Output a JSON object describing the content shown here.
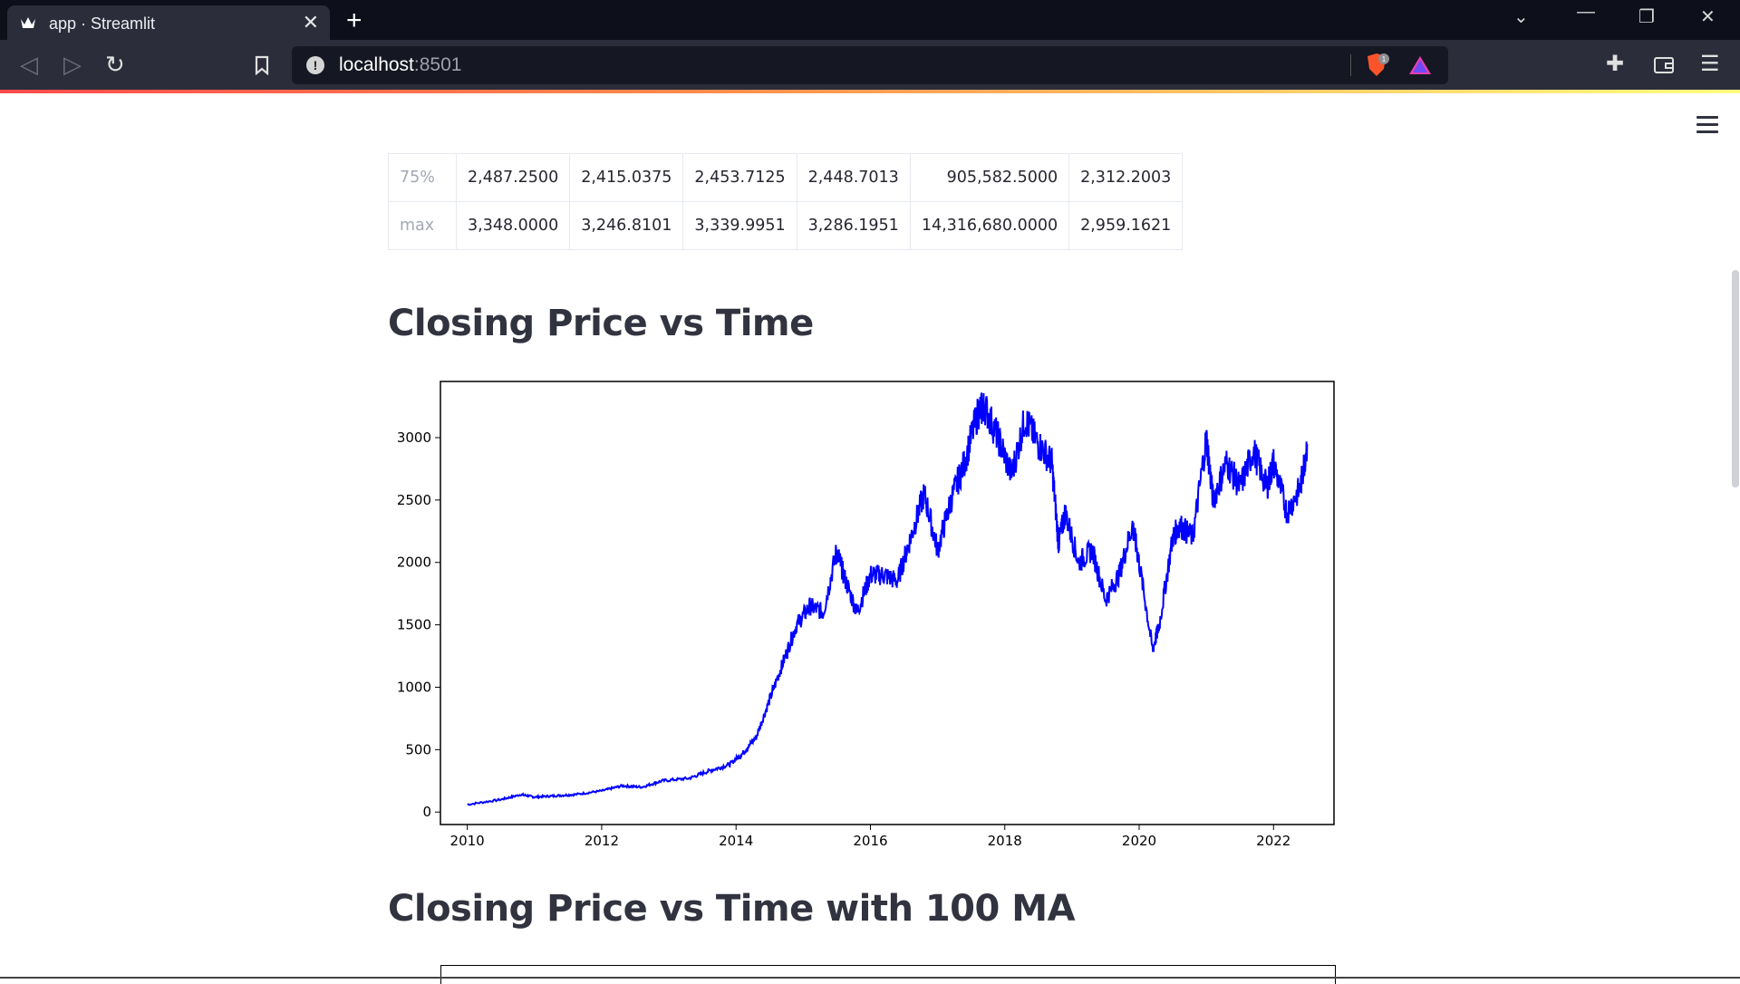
{
  "browser": {
    "tab_title": "app · Streamlit",
    "url_host": "localhost",
    "url_port": ":8501",
    "brave_badge": "1"
  },
  "stats_table": {
    "rows": [
      {
        "index": "75%",
        "values": [
          "2,487.2500",
          "2,415.0375",
          "2,453.7125",
          "2,448.7013",
          "905,582.5000",
          "2,312.2003"
        ]
      },
      {
        "index": "max",
        "values": [
          "3,348.0000",
          "3,246.8101",
          "3,339.9951",
          "3,286.1951",
          "14,316,680.0000",
          "2,959.1621"
        ]
      }
    ]
  },
  "headings": {
    "chart1": "Closing Price vs Time",
    "chart2": "Closing Price vs Time with 100 MA"
  },
  "chart_data": {
    "type": "line",
    "title": "",
    "xlabel": "",
    "ylabel": "",
    "xlim": [
      2009.6,
      2022.9
    ],
    "ylim": [
      -100,
      3450
    ],
    "x_ticks": [
      "2010",
      "2012",
      "2014",
      "2016",
      "2018",
      "2020",
      "2022"
    ],
    "y_ticks": [
      "0",
      "500",
      "1000",
      "1500",
      "2000",
      "2500",
      "3000"
    ],
    "series": [
      {
        "color": "#0000ff",
        "x": [
          2010.0,
          2010.5,
          2010.8,
          2011.0,
          2011.3,
          2011.6,
          2012.0,
          2012.3,
          2012.6,
          2012.9,
          2013.3,
          2013.6,
          2013.9,
          2014.1,
          2014.3,
          2014.5,
          2014.7,
          2014.9,
          2015.1,
          2015.3,
          2015.5,
          2015.6,
          2015.8,
          2016.0,
          2016.2,
          2016.4,
          2016.6,
          2016.8,
          2017.0,
          2017.2,
          2017.4,
          2017.6,
          2017.7,
          2017.9,
          2018.1,
          2018.3,
          2018.5,
          2018.7,
          2018.8,
          2018.9,
          2019.1,
          2019.3,
          2019.5,
          2019.7,
          2019.9,
          2020.0,
          2020.2,
          2020.3,
          2020.5,
          2020.6,
          2020.8,
          2021.0,
          2021.1,
          2021.3,
          2021.5,
          2021.7,
          2021.9,
          2022.0,
          2022.2,
          2022.4,
          2022.5
        ],
        "y": [
          60,
          100,
          140,
          120,
          130,
          140,
          170,
          210,
          200,
          250,
          270,
          330,
          380,
          470,
          600,
          900,
          1200,
          1500,
          1650,
          1600,
          2100,
          1900,
          1600,
          1900,
          1900,
          1850,
          2200,
          2550,
          2100,
          2500,
          2800,
          3200,
          3250,
          3000,
          2700,
          3150,
          2950,
          2800,
          2150,
          2400,
          2000,
          2100,
          1700,
          1900,
          2300,
          2000,
          1300,
          1500,
          2200,
          2300,
          2200,
          3000,
          2500,
          2800,
          2600,
          2900,
          2600,
          2800,
          2400,
          2600,
          2950
        ]
      }
    ]
  }
}
